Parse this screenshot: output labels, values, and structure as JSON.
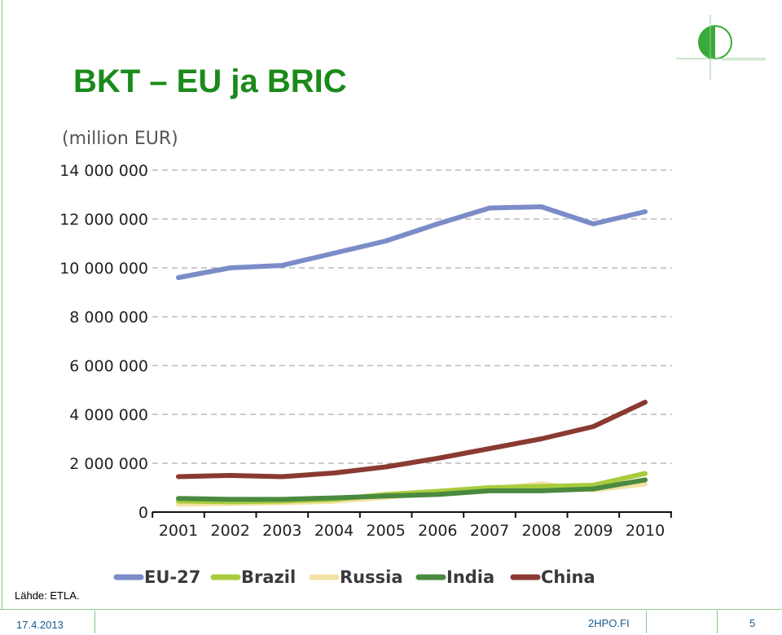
{
  "slide": {
    "title": "BKT – EU ja BRIC",
    "source": "Lähde: ETLA.",
    "footer_date": "17.4.2013",
    "footer_site": "2HPO.FI",
    "footer_page": "5"
  },
  "colors": {
    "title": "#1a8a1a",
    "accent": "#8cc68c",
    "grid": "#999999"
  },
  "chart_data": {
    "type": "line",
    "ylabel": "(million EUR)",
    "categories": [
      "2001",
      "2002",
      "2003",
      "2004",
      "2005",
      "2006",
      "2007",
      "2008",
      "2009",
      "2010"
    ],
    "ylim": [
      0,
      14000000
    ],
    "yticks": [
      0,
      2000000,
      4000000,
      6000000,
      8000000,
      10000000,
      12000000,
      14000000
    ],
    "ytick_labels": [
      "0",
      "2 000 000",
      "4 000 000",
      "6 000 000",
      "8 000 000",
      "10 000 000",
      "12 000 000",
      "14 000 000"
    ],
    "grid": true,
    "legend_position": "bottom",
    "series": [
      {
        "name": "EU-27",
        "color": "#7b8cc8",
        "values": [
          9600000,
          10000000,
          10100000,
          10600000,
          11100000,
          11800000,
          12450000,
          12500000,
          11800000,
          12300000
        ]
      },
      {
        "name": "Brazil",
        "color": "#a8cc3c",
        "values": [
          450000,
          420000,
          450000,
          520000,
          720000,
          850000,
          1000000,
          1050000,
          1100000,
          1580000
        ]
      },
      {
        "name": "Russia",
        "color": "#f2e2a4",
        "values": [
          320000,
          350000,
          380000,
          440000,
          600000,
          800000,
          950000,
          1150000,
          900000,
          1150000
        ]
      },
      {
        "name": "India",
        "color": "#4a8a40",
        "values": [
          560000,
          520000,
          520000,
          580000,
          660000,
          720000,
          870000,
          870000,
          950000,
          1320000
        ]
      },
      {
        "name": "China",
        "color": "#8a3a32",
        "values": [
          1450000,
          1500000,
          1450000,
          1600000,
          1850000,
          2200000,
          2600000,
          3000000,
          3500000,
          4500000
        ]
      }
    ]
  }
}
